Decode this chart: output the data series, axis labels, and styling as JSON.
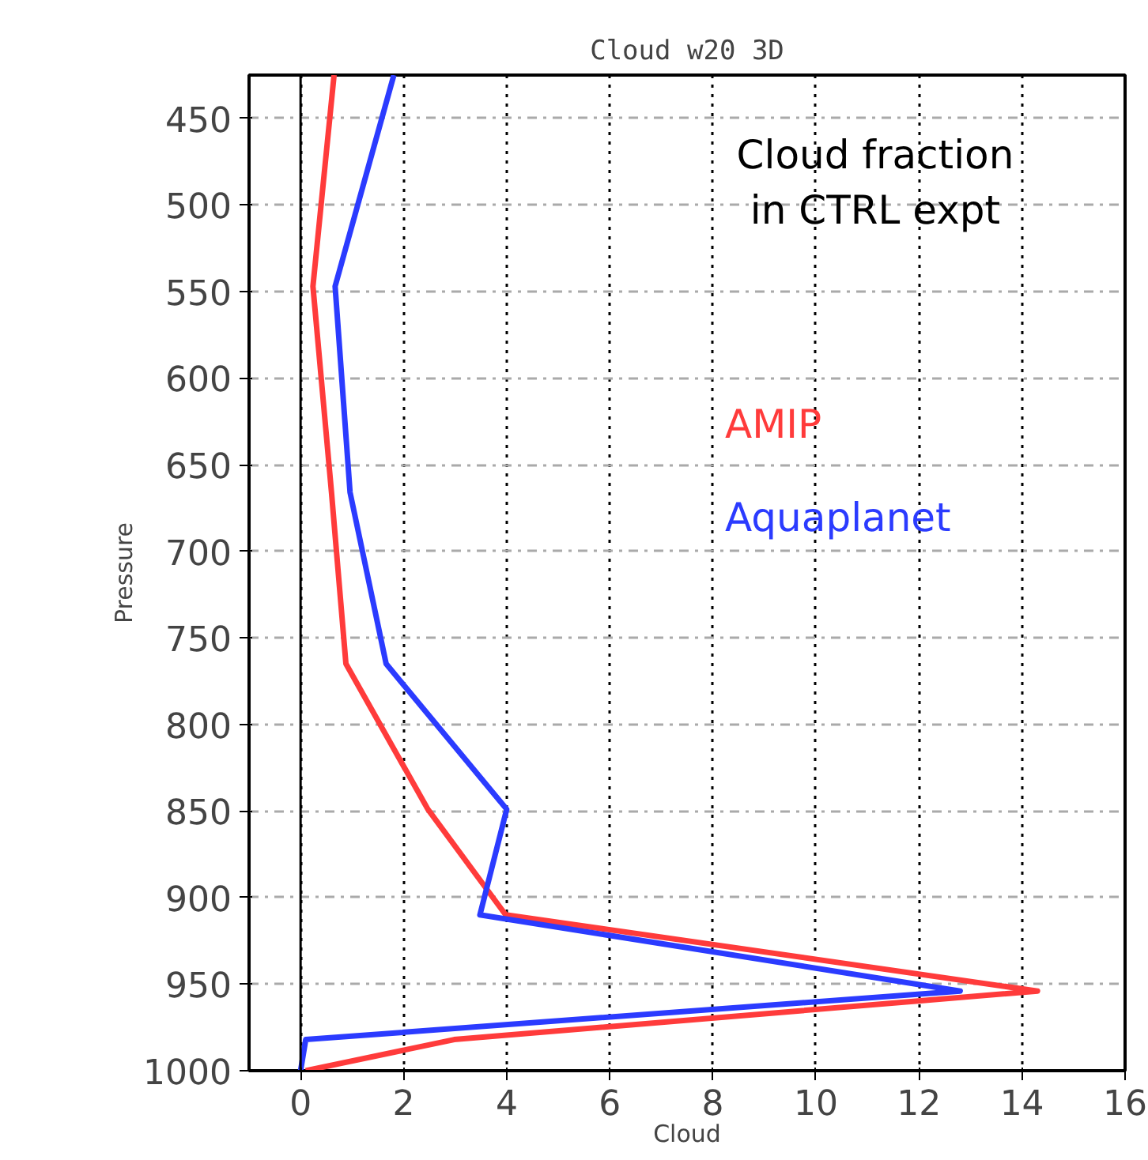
{
  "chart_data": {
    "type": "line",
    "title": "Cloud w20 3D",
    "xlabel": "Cloud",
    "ylabel": "Pressure",
    "annotations": [
      "Cloud fraction\nin CTRL expt"
    ],
    "series": [
      {
        "name": "AMIP",
        "color": "#ff3b3b",
        "x": [
          0.65,
          0.24,
          0.6,
          0.88,
          2.47,
          3.98,
          14.3,
          2.98,
          0.1
        ],
        "values": [
          425,
          547,
          666,
          765,
          849,
          910,
          954,
          982,
          1000
        ]
      },
      {
        "name": "Aquaplanet",
        "color": "#2b3bff",
        "x": [
          1.81,
          0.67,
          0.96,
          1.66,
          4.0,
          3.48,
          12.8,
          0.1,
          0
        ],
        "values": [
          425,
          547,
          666,
          765,
          849,
          910,
          954,
          982,
          1000
        ]
      }
    ],
    "xlim": [
      -1,
      16
    ],
    "xticks": [
      0,
      2,
      4,
      6,
      8,
      10,
      12,
      14,
      16
    ],
    "ylim": [
      1000,
      425
    ],
    "yticks": [
      450,
      500,
      550,
      600,
      650,
      700,
      750,
      800,
      850,
      900,
      950,
      1000
    ],
    "ref_lines": [
      {
        "axis": "x",
        "value": 0,
        "color": "#000000",
        "line_style": "solid"
      }
    ],
    "grid": true,
    "line_style": "solid"
  }
}
